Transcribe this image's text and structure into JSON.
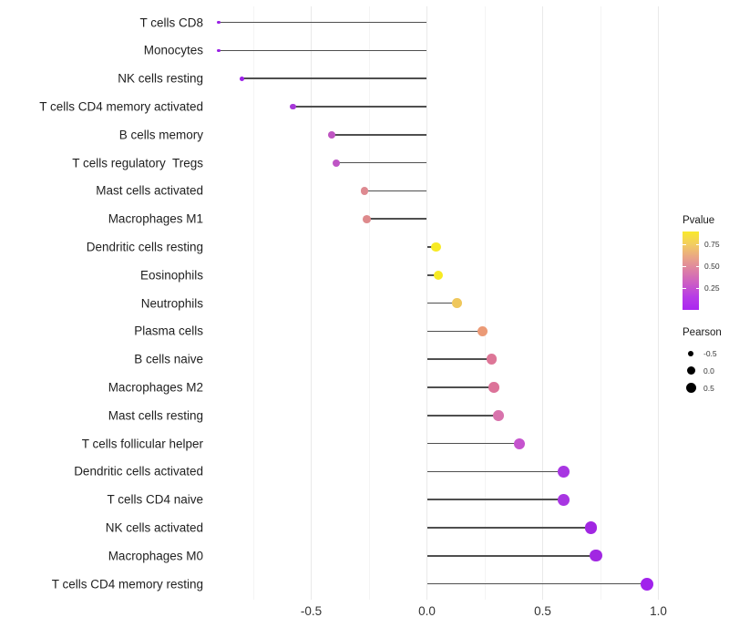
{
  "chart_data": {
    "type": "lollipop",
    "title": "",
    "xlabel": "",
    "ylabel": "",
    "xlim": [
      -0.99,
      1.04
    ],
    "grid": "vertical-only",
    "x_ticks": [
      {
        "label": "-0.5",
        "value": -0.5
      },
      {
        "label": "0.0",
        "value": 0.0
      },
      {
        "label": "0.5",
        "value": 0.5
      },
      {
        "label": "1.0",
        "value": 1.0
      }
    ],
    "x_gridlines_major": [
      -0.5,
      0.0,
      0.5,
      1.0
    ],
    "x_gridlines_minor": [
      -0.75,
      -0.25,
      0.25,
      0.75
    ],
    "points": [
      {
        "label": "T cells CD8",
        "pearson": -0.9,
        "pvalue": 0.005,
        "color": "#981fe4"
      },
      {
        "label": "Monocytes",
        "pearson": -0.9,
        "pvalue": 0.005,
        "color": "#981fe4"
      },
      {
        "label": "NK cells resting",
        "pearson": -0.8,
        "pvalue": 0.01,
        "color": "#9c22e8"
      },
      {
        "label": "T cells CD4 memory activated",
        "pearson": -0.58,
        "pvalue": 0.08,
        "color": "#a638d8"
      },
      {
        "label": "B cells memory",
        "pearson": -0.41,
        "pvalue": 0.22,
        "color": "#bf55c2"
      },
      {
        "label": "T cells regulatory  Tregs",
        "pearson": -0.39,
        "pvalue": 0.23,
        "color": "#be55c5"
      },
      {
        "label": "Mast cells activated",
        "pearson": -0.27,
        "pvalue": 0.44,
        "color": "#de8a91"
      },
      {
        "label": "Macrophages M1",
        "pearson": -0.26,
        "pvalue": 0.45,
        "color": "#de8a8c"
      },
      {
        "label": "Dendritic cells resting",
        "pearson": 0.04,
        "pvalue": 0.88,
        "color": "#f7ea23"
      },
      {
        "label": "Eosinophils",
        "pearson": 0.05,
        "pvalue": 0.88,
        "color": "#f7ea23"
      },
      {
        "label": "Neutrophils",
        "pearson": 0.13,
        "pvalue": 0.7,
        "color": "#efc75c"
      },
      {
        "label": "Plasma cells",
        "pearson": 0.24,
        "pvalue": 0.52,
        "color": "#eb9a76"
      },
      {
        "label": "B cells naive",
        "pearson": 0.28,
        "pvalue": 0.38,
        "color": "#dd7697"
      },
      {
        "label": "Macrophages M2",
        "pearson": 0.29,
        "pvalue": 0.37,
        "color": "#dc7399"
      },
      {
        "label": "Mast cells resting",
        "pearson": 0.31,
        "pvalue": 0.33,
        "color": "#d873ac"
      },
      {
        "label": "T cells follicular helper",
        "pearson": 0.4,
        "pvalue": 0.18,
        "color": "#c553ce"
      },
      {
        "label": "Dendritic cells activated",
        "pearson": 0.59,
        "pvalue": 0.07,
        "color": "#a836e2"
      },
      {
        "label": "T cells CD4 naive",
        "pearson": 0.59,
        "pvalue": 0.07,
        "color": "#a836e2"
      },
      {
        "label": "NK cells activated",
        "pearson": 0.71,
        "pvalue": 0.03,
        "color": "#a127e2"
      },
      {
        "label": "Macrophages M0",
        "pearson": 0.73,
        "pvalue": 0.03,
        "color": "#a127e2"
      },
      {
        "label": "T cells CD4 memory resting",
        "pearson": 0.95,
        "pvalue": 0.001,
        "color": "#a122ec"
      }
    ],
    "pvalue_legend": {
      "title": "Pvalue",
      "range": [
        0,
        0.9
      ],
      "ticks": [
        {
          "label": "0.75",
          "value": 0.75
        },
        {
          "label": "0.50",
          "value": 0.5
        },
        {
          "label": "0.25",
          "value": 0.25
        }
      ],
      "gradient_stops": [
        "#f9e92c",
        "#f2cc62",
        "#e9a487",
        "#dc7ea6",
        "#cb5cc6",
        "#b73ce6",
        "#aa26f0"
      ]
    },
    "pearson_legend": {
      "title": "Pearson",
      "dot_color": "#000000",
      "items": [
        {
          "label": "-0.5",
          "value": -0.5,
          "radius": 3.4
        },
        {
          "label": "0.0",
          "value": 0.0,
          "radius": 4.5
        },
        {
          "label": "0.5",
          "value": 0.5,
          "radius": 5.5
        }
      ]
    },
    "stem_color": "#4f4f4f"
  }
}
